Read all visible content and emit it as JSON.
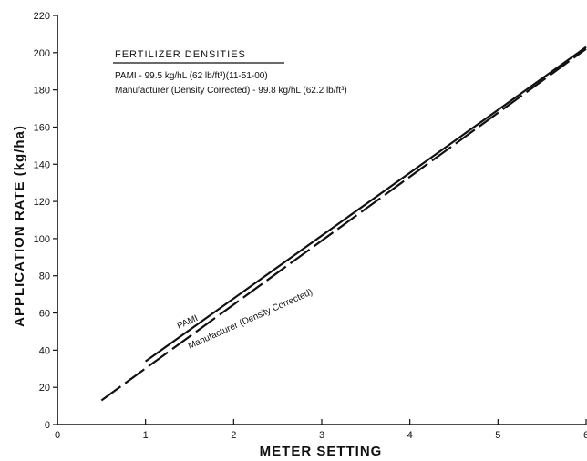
{
  "chart_data": {
    "type": "line",
    "xlabel": "METER SETTING",
    "ylabel": "APPLICATION RATE (kg/ha)",
    "xlim": [
      0,
      6
    ],
    "ylim": [
      0,
      220
    ],
    "x_ticks": [
      0,
      1,
      2,
      3,
      4,
      5,
      6
    ],
    "y_ticks": [
      0,
      20,
      40,
      60,
      80,
      100,
      120,
      140,
      160,
      180,
      200,
      220
    ],
    "grid": false,
    "legend": {
      "title": "FERTILIZER DENSITIES",
      "lines": [
        "PAMI - 99.5 kg/hL (62 lb/ft³)(11-51-00)",
        "Manufacturer (Density Corrected) - 99.8 kg/hL (62.2 lb/ft³)"
      ],
      "placement": "top-left"
    },
    "series": [
      {
        "name": "PAMI",
        "style": "solid",
        "color": "#111111",
        "x": [
          1.0,
          6.0
        ],
        "y": [
          34,
          203
        ]
      },
      {
        "name": "Manufacturer (Density Corrected)",
        "style": "dashed",
        "color": "#111111",
        "x": [
          0.5,
          6.0
        ],
        "y": [
          13,
          202
        ]
      }
    ]
  }
}
